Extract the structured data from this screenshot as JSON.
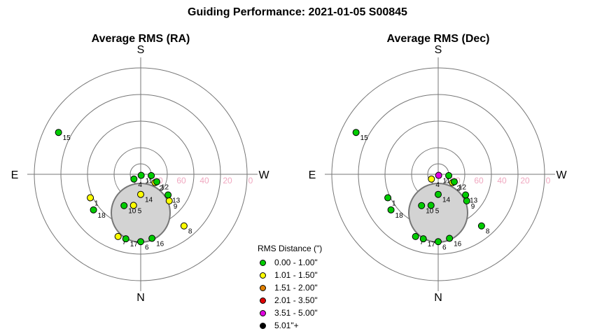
{
  "title": "Guiding Performance: 2021-01-05 S00845",
  "legend": {
    "title": "RMS Distance (\")",
    "items": [
      {
        "label": "0.00 - 1.00\"",
        "color": "#00cc00"
      },
      {
        "label": "1.01 - 1.50\"",
        "color": "#ffff00"
      },
      {
        "label": "1.51 - 2.00\"",
        "color": "#e08000"
      },
      {
        "label": "2.01 - 3.50\"",
        "color": "#e00000"
      },
      {
        "label": "3.51 - 5.00\"",
        "color": "#e000e0"
      },
      {
        "label": "5.01\"+",
        "color": "#000000"
      }
    ]
  },
  "chart_data": [
    {
      "type": "scatter",
      "subtype": "polar-sky",
      "title": "Average RMS (RA)",
      "directions": {
        "top": "S",
        "bottom": "N",
        "left": "E",
        "right": "W"
      },
      "radial_ticks": [
        "80",
        "60",
        "40",
        "20",
        "0"
      ],
      "points": [
        {
          "label": "1",
          "az": 245,
          "alt": 43,
          "color": "#ffff00"
        },
        {
          "label": "2",
          "az": 120,
          "alt": 76,
          "color": "#ffff00"
        },
        {
          "label": "3",
          "az": 97,
          "alt": 81,
          "color": "#00cc00"
        },
        {
          "label": "4",
          "az": 235,
          "alt": 83,
          "color": "#00cc00"
        },
        {
          "label": "5",
          "az": 193,
          "alt": 63,
          "color": "#ffff00"
        },
        {
          "label": "6",
          "az": 180,
          "alt": 33,
          "color": "#00cc00"
        },
        {
          "label": "7",
          "az": 200,
          "alt": 34,
          "color": "#ffff00"
        },
        {
          "label": "8",
          "az": 140,
          "alt": 33,
          "color": "#ffff00"
        },
        {
          "label": "9",
          "az": 133,
          "alt": 57,
          "color": "#ffff00"
        },
        {
          "label": "10",
          "az": 208,
          "alt": 60,
          "color": "#00cc00"
        },
        {
          "label": "11",
          "az": 157,
          "alt": 89,
          "color": "#00cc00"
        },
        {
          "label": "12",
          "az": 115,
          "alt": 75,
          "color": "#00cc00"
        },
        {
          "label": "13",
          "az": 127,
          "alt": 61,
          "color": "#00cc00"
        },
        {
          "label": "14",
          "az": 180,
          "alt": 73,
          "color": "#ffff00"
        },
        {
          "label": "15",
          "az": 297,
          "alt": 12,
          "color": "#00cc00"
        },
        {
          "label": "16",
          "az": 170,
          "alt": 35,
          "color": "#00cc00"
        },
        {
          "label": "17",
          "az": 193,
          "alt": 34,
          "color": "#00cc00"
        },
        {
          "label": "18",
          "az": 233,
          "alt": 40,
          "color": "#00cc00"
        }
      ]
    },
    {
      "type": "scatter",
      "subtype": "polar-sky",
      "title": "Average RMS (Dec)",
      "directions": {
        "top": "S",
        "bottom": "N",
        "left": "E",
        "right": "W"
      },
      "radial_ticks": [
        "80",
        "60",
        "40",
        "20",
        "0"
      ],
      "points": [
        {
          "label": "1",
          "az": 245,
          "alt": 43,
          "color": "#00cc00"
        },
        {
          "label": "2",
          "az": 120,
          "alt": 76,
          "color": "#ffff00"
        },
        {
          "label": "3",
          "az": 97,
          "alt": 81,
          "color": "#00cc00"
        },
        {
          "label": "4",
          "az": 235,
          "alt": 83,
          "color": "#ffff00"
        },
        {
          "label": "5",
          "az": 193,
          "alt": 63,
          "color": "#00cc00"
        },
        {
          "label": "6",
          "az": 180,
          "alt": 33,
          "color": "#00cc00"
        },
        {
          "label": "7",
          "az": 200,
          "alt": 34,
          "color": "#00cc00"
        },
        {
          "label": "8",
          "az": 140,
          "alt": 33,
          "color": "#00cc00"
        },
        {
          "label": "9",
          "az": 133,
          "alt": 57,
          "color": "#00cc00"
        },
        {
          "label": "10",
          "az": 208,
          "alt": 60,
          "color": "#00cc00"
        },
        {
          "label": "11",
          "az": 157,
          "alt": 89,
          "color": "#e000e0"
        },
        {
          "label": "12",
          "az": 115,
          "alt": 75,
          "color": "#00cc00"
        },
        {
          "label": "13",
          "az": 127,
          "alt": 61,
          "color": "#00cc00"
        },
        {
          "label": "14",
          "az": 180,
          "alt": 73,
          "color": "#00cc00"
        },
        {
          "label": "15",
          "az": 297,
          "alt": 12,
          "color": "#00cc00"
        },
        {
          "label": "16",
          "az": 170,
          "alt": 35,
          "color": "#00cc00"
        },
        {
          "label": "17",
          "az": 193,
          "alt": 34,
          "color": "#00cc00"
        },
        {
          "label": "18",
          "az": 233,
          "alt": 40,
          "color": "#00cc00"
        }
      ]
    }
  ]
}
